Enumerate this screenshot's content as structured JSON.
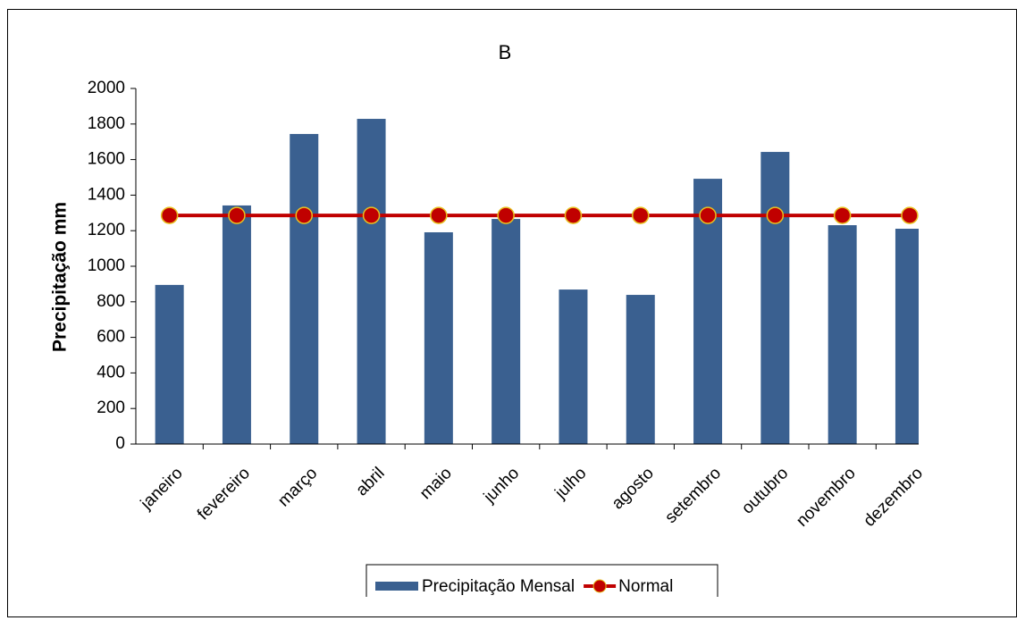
{
  "chart_data": {
    "type": "bar",
    "title": "B",
    "y_label": "Precipitação mm",
    "categories": [
      "janeiro",
      "fevereiro",
      "março",
      "abril",
      "maio",
      "junho",
      "julho",
      "agosto",
      "setembro",
      "outubro",
      "novembro",
      "dezembro"
    ],
    "series": [
      {
        "name": "Precipitação Mensal",
        "type": "bar",
        "color": "#3a6090",
        "values": [
          895,
          1342,
          1744,
          1829,
          1191,
          1266,
          869,
          839,
          1492,
          1643,
          1231,
          1211
        ]
      },
      {
        "name": "Normal",
        "type": "line",
        "color": "#c00000",
        "values": [
          1286,
          1286,
          1286,
          1286,
          1286,
          1286,
          1286,
          1286,
          1286,
          1286,
          1286,
          1286
        ]
      }
    ],
    "ylim": [
      0,
      2000
    ],
    "yticks": [
      0,
      200,
      400,
      600,
      800,
      1000,
      1200,
      1400,
      1600,
      1800,
      2000
    ],
    "grid": false
  }
}
